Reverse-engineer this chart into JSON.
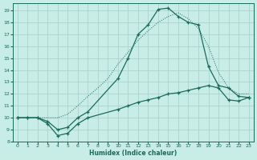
{
  "xlabel": "Humidex (Indice chaleur)",
  "background_color": "#c8ece6",
  "grid_color": "#aad4cc",
  "line_color": "#1a6b5a",
  "xlim": [
    -0.5,
    23.5
  ],
  "ylim": [
    8.0,
    19.6
  ],
  "yticks": [
    8,
    9,
    10,
    11,
    12,
    13,
    14,
    15,
    16,
    17,
    18,
    19
  ],
  "xticks": [
    0,
    1,
    2,
    3,
    4,
    5,
    6,
    7,
    8,
    9,
    10,
    11,
    12,
    13,
    14,
    15,
    16,
    17,
    18,
    19,
    20,
    21,
    22,
    23
  ],
  "line_dotted_x": [
    0,
    1,
    2,
    3,
    4,
    5,
    6,
    7,
    8,
    9,
    10,
    11,
    12,
    13,
    14,
    15,
    16,
    17,
    18,
    19,
    20,
    21,
    22,
    23
  ],
  "line_dotted_y": [
    10.0,
    10.0,
    10.0,
    10.0,
    10.0,
    10.3,
    11.0,
    11.8,
    12.5,
    13.3,
    14.5,
    15.5,
    16.5,
    17.3,
    18.0,
    18.5,
    18.8,
    18.3,
    17.5,
    16.0,
    13.8,
    12.5,
    12.0,
    12.0
  ],
  "line_peak_x": [
    0,
    1,
    2,
    3,
    4,
    5,
    6,
    7,
    10,
    11,
    12,
    13,
    14,
    15,
    16,
    17,
    18,
    19,
    20,
    21,
    22,
    23
  ],
  "line_peak_y": [
    10.0,
    10.0,
    10.0,
    9.7,
    9.0,
    9.2,
    10.0,
    10.5,
    13.3,
    15.0,
    17.0,
    17.8,
    19.1,
    19.2,
    18.5,
    18.0,
    17.8,
    14.3,
    12.7,
    12.5,
    11.8,
    11.7
  ],
  "line_bottom_x": [
    0,
    1,
    2,
    3,
    4,
    5,
    6,
    7,
    10,
    11,
    12,
    13,
    14,
    15,
    16,
    17,
    18,
    19,
    20,
    21,
    22,
    23
  ],
  "line_bottom_y": [
    10.0,
    10.0,
    10.0,
    9.5,
    8.5,
    8.7,
    9.5,
    10.0,
    10.7,
    11.0,
    11.3,
    11.5,
    11.7,
    12.0,
    12.1,
    12.3,
    12.5,
    12.7,
    12.5,
    11.5,
    11.4,
    11.7
  ]
}
